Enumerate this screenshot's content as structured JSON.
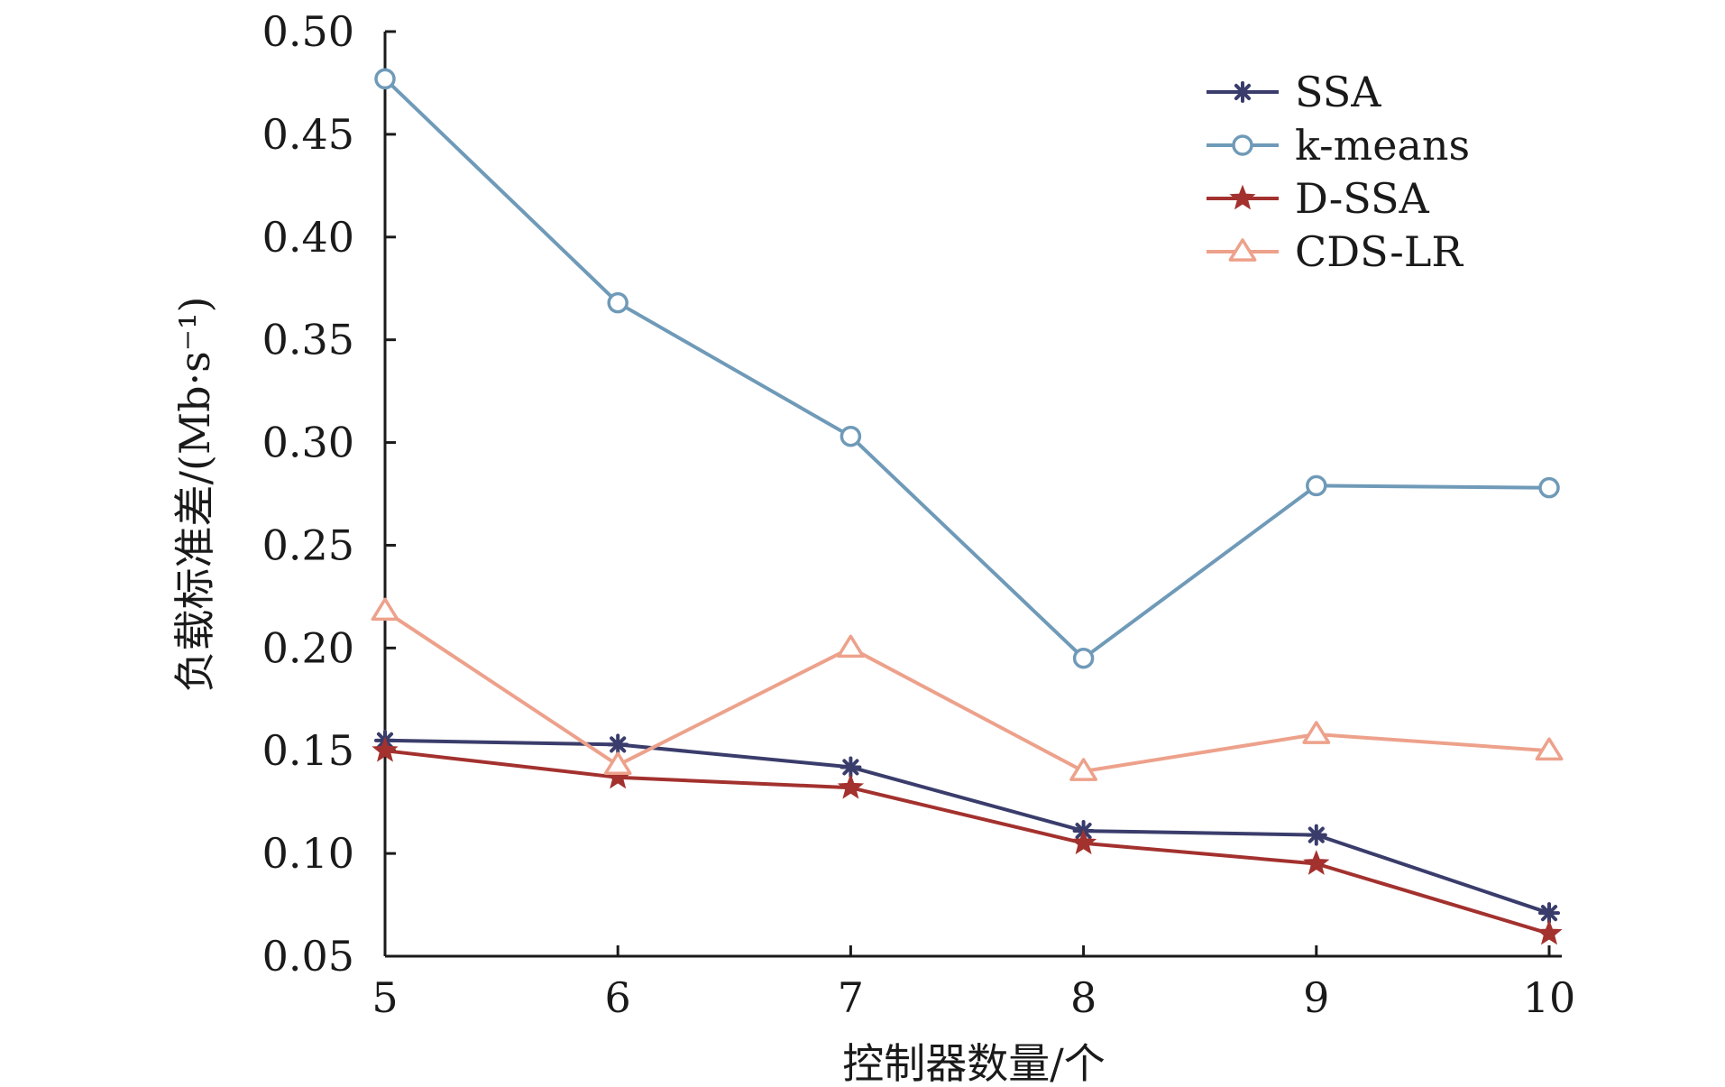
{
  "chart_data": {
    "type": "line",
    "title": "",
    "xlabel": "控制器数量/个",
    "ylabel": "负载标准差/(Mb·s⁻¹)",
    "x": [
      5,
      6,
      7,
      8,
      9,
      10
    ],
    "xlim": [
      5,
      10
    ],
    "ylim": [
      0.05,
      0.5
    ],
    "x_ticks": [
      "5",
      "6",
      "7",
      "8",
      "9",
      "10"
    ],
    "y_ticks": [
      "0.05",
      "0.10",
      "0.15",
      "0.20",
      "0.25",
      "0.30",
      "0.35",
      "0.40",
      "0.45",
      "0.50"
    ],
    "grid": false,
    "legend_position": "top-right",
    "series": [
      {
        "name": "SSA",
        "marker": "asterisk",
        "color": "#3a3d6b",
        "values": [
          0.155,
          0.153,
          0.142,
          0.111,
          0.109,
          0.071
        ]
      },
      {
        "name": "k-means",
        "marker": "circle",
        "color": "#6f9ab8",
        "values": [
          0.477,
          0.368,
          0.303,
          0.195,
          0.279,
          0.278
        ]
      },
      {
        "name": "D-SSA",
        "marker": "star",
        "color": "#a3312e",
        "values": [
          0.15,
          0.137,
          0.132,
          0.105,
          0.095,
          0.061
        ]
      },
      {
        "name": "CDS-LR",
        "marker": "triangle",
        "color": "#eda18b",
        "values": [
          0.218,
          0.143,
          0.2,
          0.14,
          0.158,
          0.15
        ]
      }
    ]
  }
}
